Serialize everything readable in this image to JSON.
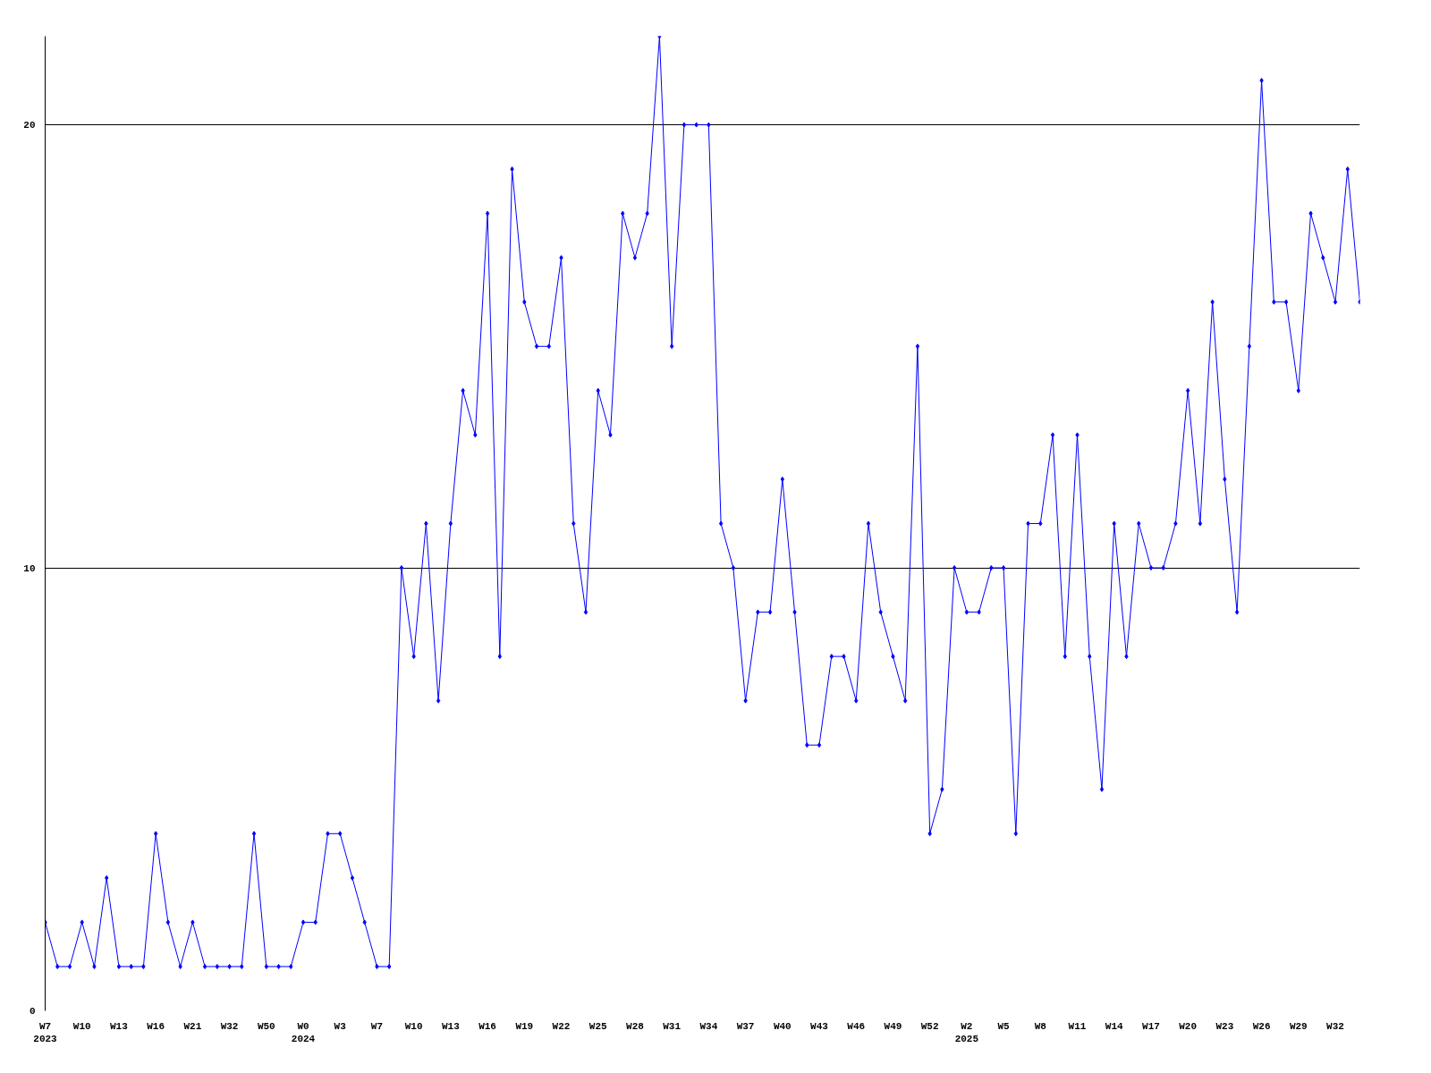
{
  "chart_data": {
    "type": "line",
    "color": "#0000ff",
    "marker": "diamond",
    "grid": "y",
    "ylim": [
      0,
      22
    ],
    "yticks": [
      0,
      10,
      20
    ],
    "categories": [
      "W7\n2023",
      null,
      null,
      "W10",
      null,
      null,
      "W13",
      null,
      null,
      "W16",
      null,
      null,
      "W21",
      null,
      null,
      "W32",
      null,
      null,
      "W50",
      null,
      null,
      "W0\n2024",
      null,
      null,
      "W3",
      null,
      null,
      "W7",
      null,
      null,
      "W10",
      null,
      null,
      "W13",
      null,
      null,
      "W16",
      null,
      null,
      "W19",
      null,
      null,
      "W22",
      null,
      null,
      "W25",
      null,
      null,
      "W28",
      null,
      null,
      "W31",
      null,
      null,
      "W34",
      null,
      null,
      "W37",
      null,
      null,
      "W40",
      null,
      null,
      "W43",
      null,
      null,
      "W46",
      null,
      null,
      "W49",
      null,
      null,
      "W52",
      null,
      null,
      "W2\n2025",
      null,
      null,
      "W5",
      null,
      null,
      "W8",
      null,
      null,
      "W11",
      null,
      null,
      "W14",
      null,
      null,
      "W17",
      null,
      null,
      "W20",
      null,
      null,
      "W23",
      null,
      null,
      "W26",
      null,
      null,
      "W29",
      null,
      null,
      "W32",
      null,
      null
    ],
    "values": [
      2,
      1,
      1,
      2,
      1,
      3,
      1,
      1,
      1,
      4,
      2,
      1,
      2,
      1,
      1,
      1,
      1,
      4,
      1,
      1,
      1,
      2,
      2,
      4,
      4,
      3,
      2,
      1,
      1,
      10,
      8,
      11,
      7,
      11,
      14,
      13,
      18,
      8,
      19,
      16,
      15,
      15,
      17,
      11,
      9,
      14,
      13,
      18,
      17,
      18,
      22,
      15,
      20,
      20,
      20,
      11,
      10,
      7,
      9,
      9,
      12,
      9,
      6,
      6,
      8,
      8,
      7,
      11,
      9,
      8,
      7,
      15,
      4,
      5,
      10,
      9,
      9,
      10,
      10,
      4,
      11,
      11,
      13,
      8,
      13,
      8,
      5,
      11,
      8,
      11,
      10,
      10,
      11,
      14,
      11,
      16,
      12,
      9,
      15,
      21,
      16,
      16,
      14,
      18,
      17,
      16,
      19,
      16
    ]
  }
}
